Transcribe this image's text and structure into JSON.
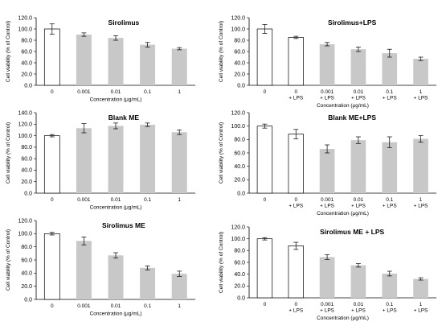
{
  "chart_data": [
    {
      "type": "bar",
      "title": "Sirolimus",
      "xlabel": "Concentration (μg/mL)",
      "ylabel": "Cell viability (% of Control)",
      "ylim": [
        0,
        120
      ],
      "yticks": [
        "0.0",
        "20.0",
        "40.0",
        "60.0",
        "80.0",
        "100.0",
        "120.0"
      ],
      "categories": [
        [
          "0"
        ],
        [
          "0.001"
        ],
        [
          "0.01"
        ],
        [
          "0.1"
        ],
        [
          "1"
        ]
      ],
      "values": [
        100,
        90,
        84,
        72,
        65
      ],
      "errors": [
        9,
        3,
        4,
        4,
        2
      ],
      "bar_fills": [
        "#ffffff",
        "#c8c8c8",
        "#c8c8c8",
        "#c8c8c8",
        "#c8c8c8"
      ]
    },
    {
      "type": "bar",
      "title": "Sirolimus+LPS",
      "xlabel": "Concentration (μg/mL)",
      "ylabel": "Cell viability (% of Control)",
      "ylim": [
        0,
        120
      ],
      "yticks": [
        "0.0",
        "20.0",
        "40.0",
        "60.0",
        "80.0",
        "100.0",
        "120.0"
      ],
      "categories": [
        [
          "0"
        ],
        [
          "0",
          "+ LPS"
        ],
        [
          "0.001",
          "+ LPS"
        ],
        [
          "0.01",
          "+ LPS"
        ],
        [
          "0.1",
          "+ LPS"
        ],
        [
          "1",
          "+ LPS"
        ]
      ],
      "values": [
        100,
        85,
        73,
        64,
        57,
        47
      ],
      "errors": [
        8,
        2,
        3,
        4,
        7,
        3
      ],
      "bar_fills": [
        "#ffffff",
        "#ffffff",
        "#c8c8c8",
        "#c8c8c8",
        "#c8c8c8",
        "#c8c8c8"
      ]
    },
    {
      "type": "bar",
      "title": "Blank ME",
      "xlabel": "Concentration (μg/mL)",
      "ylabel": "Cell viability (% of Control)",
      "ylim": [
        0,
        140
      ],
      "yticks": [
        "0.0",
        "20.0",
        "40.0",
        "60.0",
        "80.0",
        "100.0",
        "120.0",
        "140.0"
      ],
      "categories": [
        [
          "0"
        ],
        [
          "0.001"
        ],
        [
          "0.01"
        ],
        [
          "0.1"
        ],
        [
          "1"
        ]
      ],
      "values": [
        100,
        113,
        117,
        119,
        106
      ],
      "errors": [
        2,
        8,
        5,
        3,
        4
      ],
      "bar_fills": [
        "#ffffff",
        "#c8c8c8",
        "#c8c8c8",
        "#c8c8c8",
        "#c8c8c8"
      ]
    },
    {
      "type": "bar",
      "title": "Blank ME+LPS",
      "xlabel": "Concentration (μg/mL)",
      "ylabel": "Cell viability (% of Control)",
      "ylim": [
        0,
        120
      ],
      "yticks": [
        "0.0",
        "20.0",
        "40.0",
        "60.0",
        "80.0",
        "100.0",
        "120.0"
      ],
      "categories": [
        [
          "0"
        ],
        [
          "0",
          "+ LPS"
        ],
        [
          "0.001",
          "+ LPS"
        ],
        [
          "0.01",
          "+ LPS"
        ],
        [
          "0.1",
          "+ LPS"
        ],
        [
          "1",
          "+ LPS"
        ]
      ],
      "values": [
        100,
        88,
        66,
        79,
        76,
        81
      ],
      "errors": [
        3,
        7,
        6,
        5,
        8,
        5
      ],
      "bar_fills": [
        "#ffffff",
        "#ffffff",
        "#c8c8c8",
        "#c8c8c8",
        "#c8c8c8",
        "#c8c8c8"
      ]
    },
    {
      "type": "bar",
      "title": "Sirolimus ME",
      "xlabel": "Concentration (μg/mL)",
      "ylabel": "Cell viability (% of Control)",
      "ylim": [
        0,
        120
      ],
      "yticks": [
        "0.0",
        "20.0",
        "40.0",
        "60.0",
        "80.0",
        "100.0",
        "120.0"
      ],
      "categories": [
        [
          "0"
        ],
        [
          "0.001"
        ],
        [
          "0.01"
        ],
        [
          "0.1"
        ],
        [
          "1"
        ]
      ],
      "values": [
        100,
        89,
        67,
        48,
        39
      ],
      "errors": [
        2,
        6,
        4,
        3,
        4
      ],
      "bar_fills": [
        "#ffffff",
        "#c8c8c8",
        "#c8c8c8",
        "#c8c8c8",
        "#c8c8c8"
      ]
    },
    {
      "type": "bar",
      "title": "Sirolimus ME + LPS",
      "xlabel": "Concentration (μg/mL)",
      "ylabel": "Cell viability (% of Control)",
      "ylim": [
        0,
        120
      ],
      "yticks": [
        "0.0",
        "20.0",
        "40.0",
        "60.0",
        "80.0",
        "100.0",
        "120.0"
      ],
      "categories": [
        [
          "0"
        ],
        [
          "0",
          "+ LPS"
        ],
        [
          "0.001",
          "+ LPS"
        ],
        [
          "0.01",
          "+ LPS"
        ],
        [
          "0.1",
          "+ LPS"
        ],
        [
          "1",
          "+ LPS"
        ]
      ],
      "values": [
        100,
        88,
        69,
        55,
        41,
        32
      ],
      "errors": [
        2,
        6,
        4,
        3,
        4,
        2
      ],
      "bar_fills": [
        "#ffffff",
        "#ffffff",
        "#c8c8c8",
        "#c8c8c8",
        "#c8c8c8",
        "#c8c8c8"
      ]
    }
  ]
}
